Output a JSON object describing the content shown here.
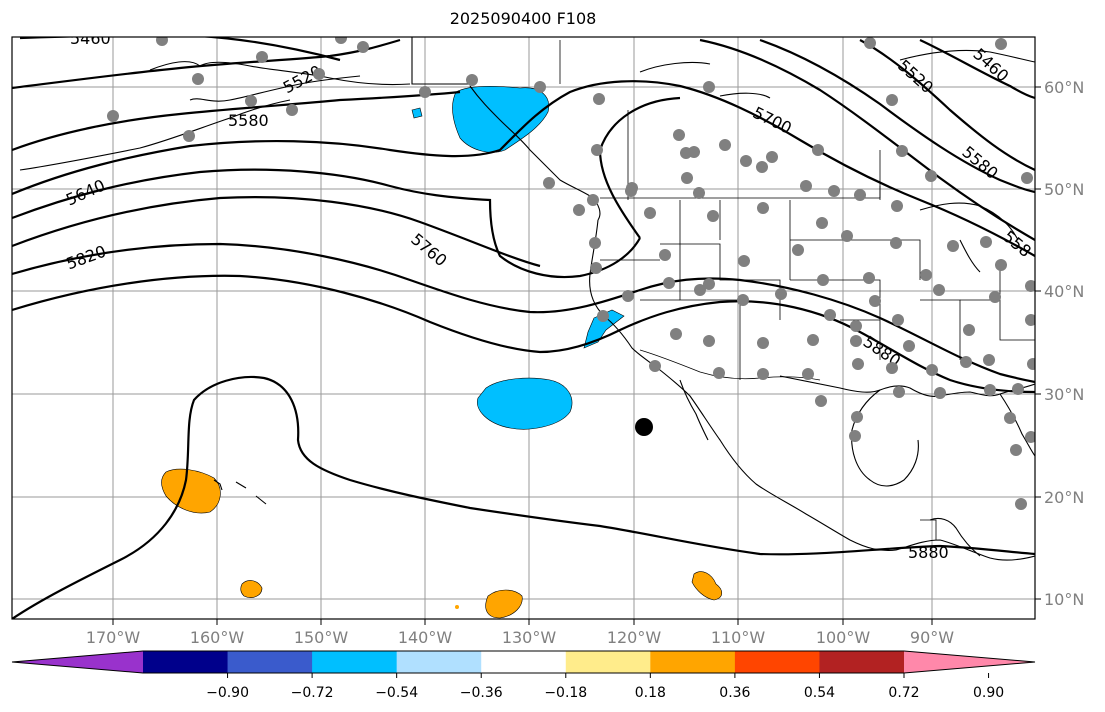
{
  "title": "2025090400 F108",
  "lon_labels": [
    "170°W",
    "160°W",
    "150°W",
    "140°W",
    "130°W",
    "120°W",
    "110°W",
    "100°W",
    "90°W"
  ],
  "lat_labels": [
    "60°N",
    "50°N",
    "40°N",
    "30°N",
    "20°N",
    "10°N"
  ],
  "contour_labels": [
    "5460",
    "5520",
    "5580",
    "5640",
    "5700",
    "5760",
    "5820",
    "5880",
    "5880",
    "5520",
    "5460",
    "5580",
    "558"
  ],
  "colorbar": {
    "ticks": [
      "−0.90",
      "−0.72",
      "−0.54",
      "−0.36",
      "−0.18",
      "0.18",
      "0.36",
      "0.54",
      "0.72",
      "0.90"
    ],
    "colors": [
      "#9932cc",
      "#00008b",
      "#3a5bcc",
      "#00bfff",
      "#b0e0ff",
      "#ffffff",
      "#ffec8b",
      "#ffa500",
      "#ff4500",
      "#b22222",
      "#ff88aa"
    ]
  },
  "colors": {
    "station_dot": "#808080",
    "negative_anomaly": "#00bfff",
    "positive_anomaly": "#ffa500"
  }
}
